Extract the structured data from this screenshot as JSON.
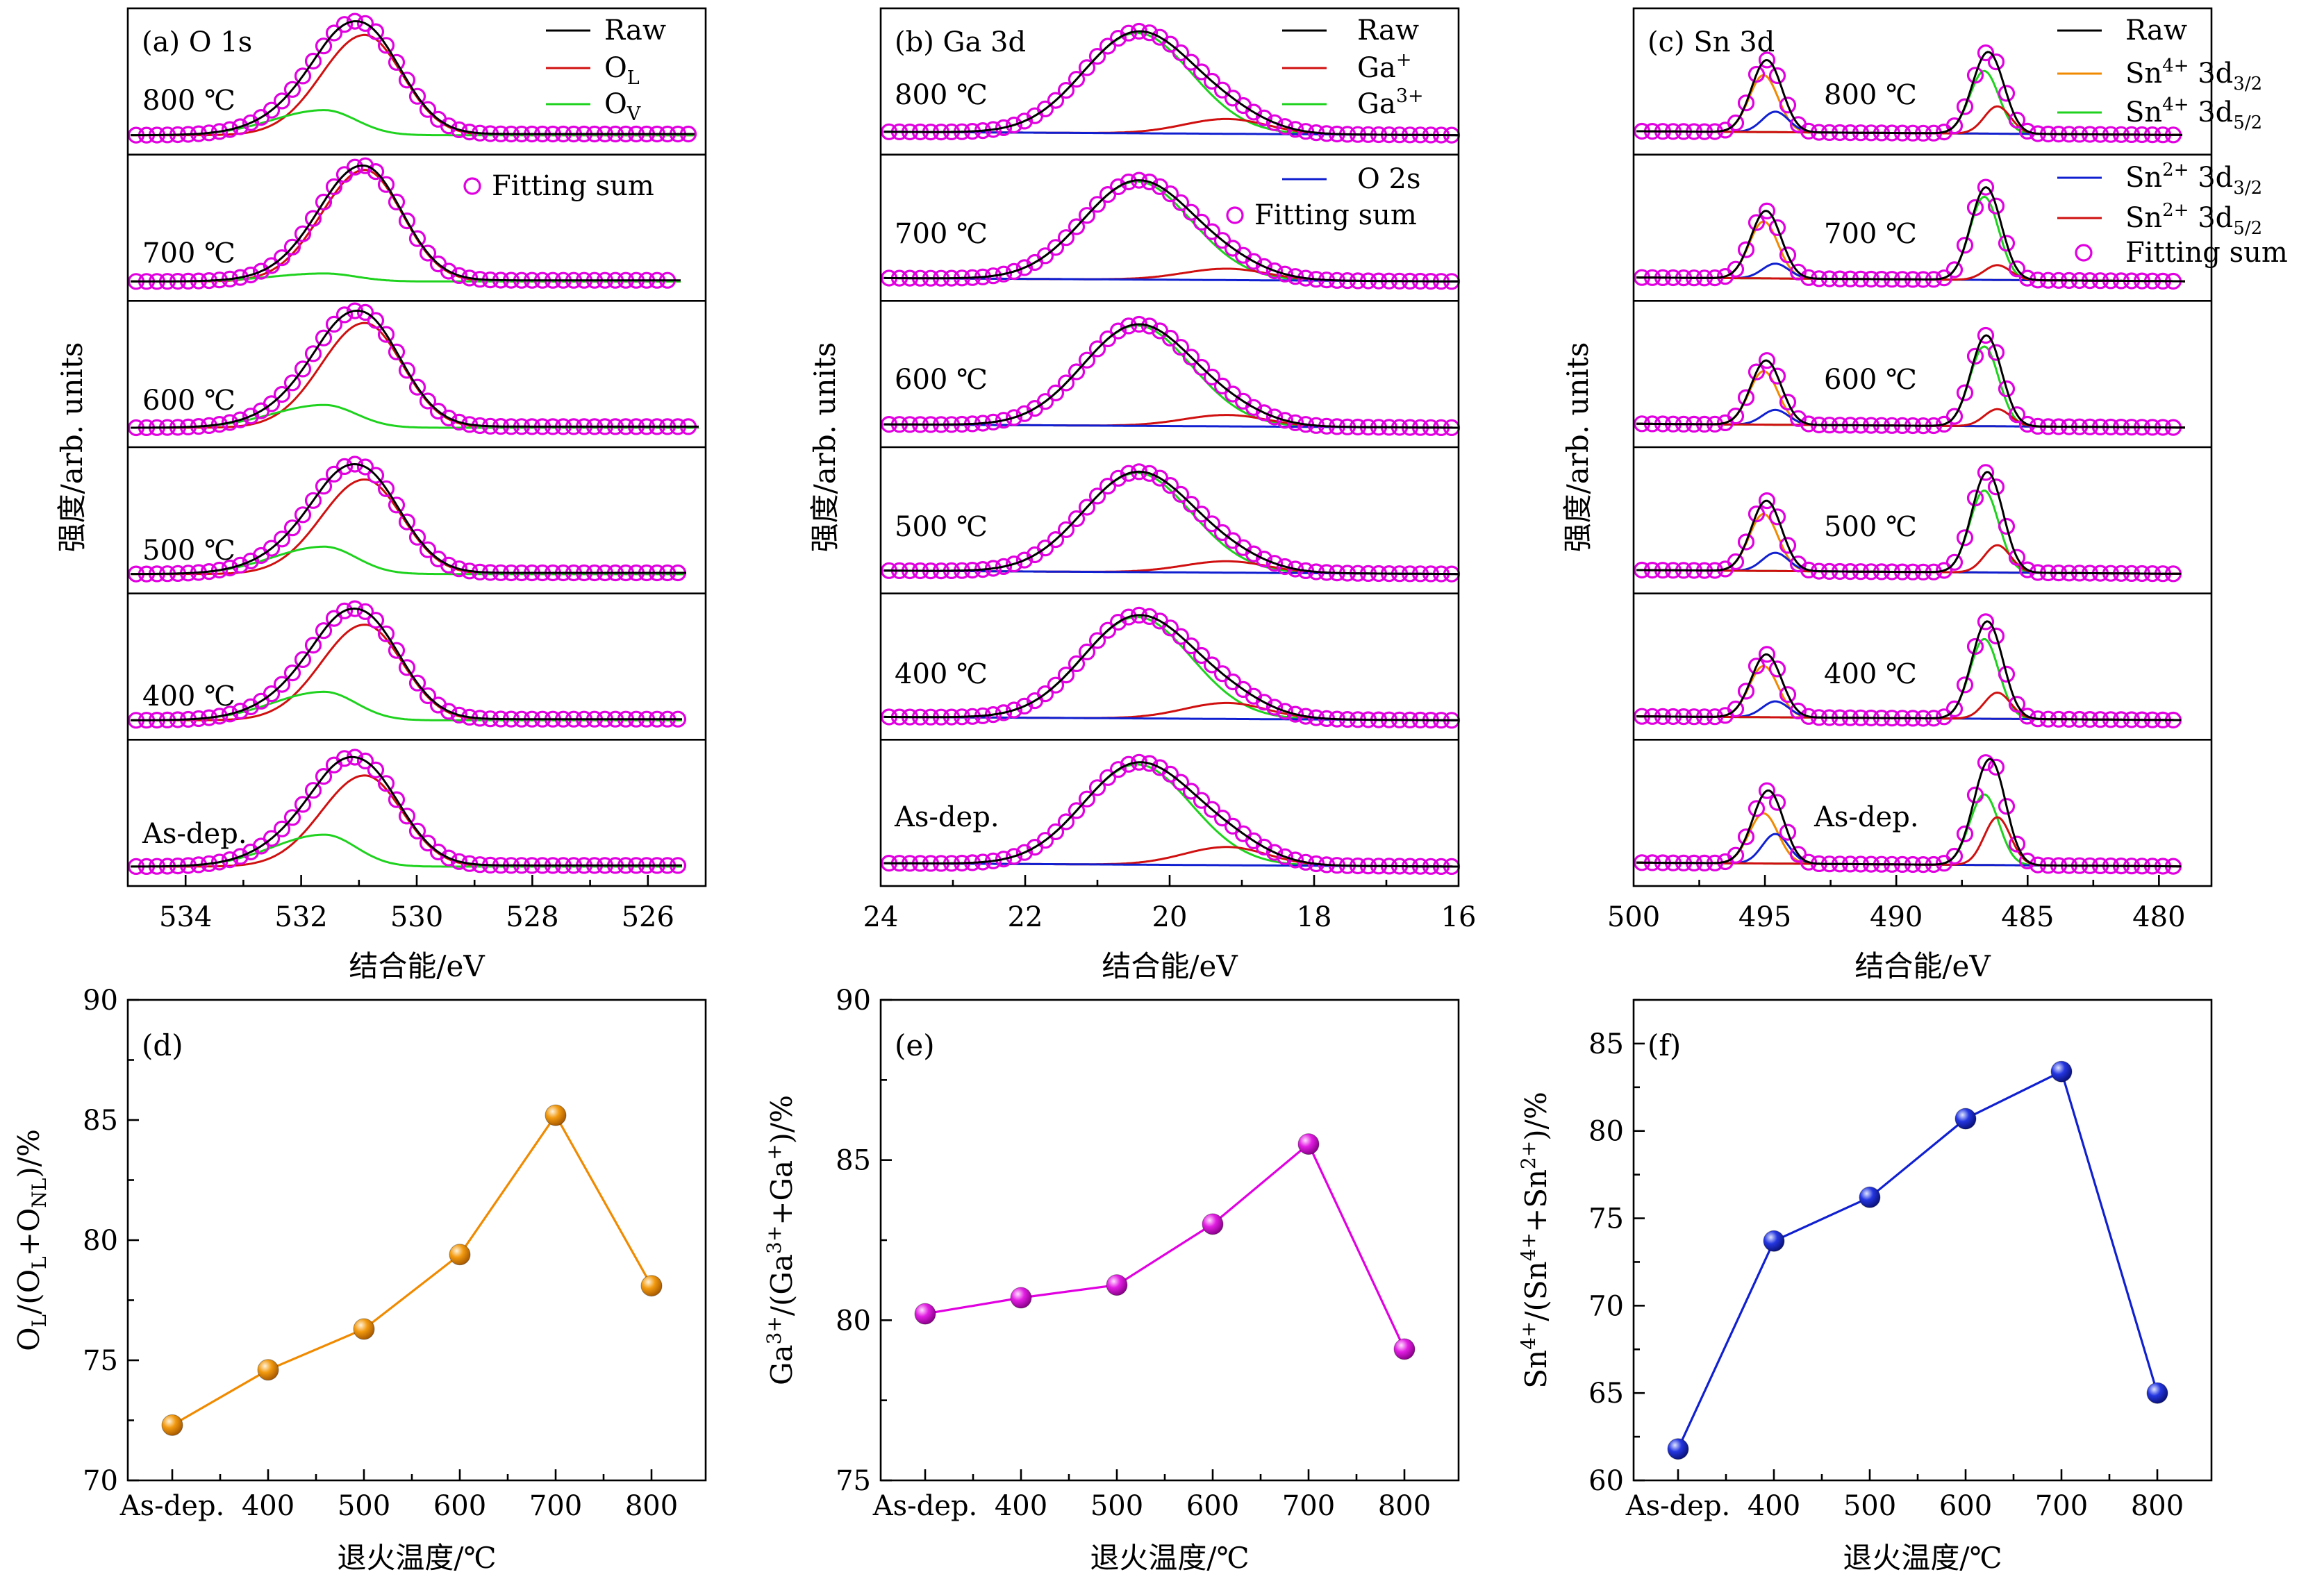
{
  "figure": {
    "spectra_ylabel": "强度/arb. units",
    "spectra_xlabel": "结合能/eV",
    "ratio_xlabel": "退火温度/℃"
  },
  "colors": {
    "raw": "#000000",
    "fit": "#e000e0",
    "green": "#1ed21e",
    "red": "#d01010",
    "blue": "#1020d0",
    "orange": "#f08a00"
  },
  "panels": {
    "a": {
      "label": "(a) O 1s"
    },
    "b": {
      "label": "(b) Ga 3d"
    },
    "c": {
      "label": "(c) Sn 3d"
    },
    "d": {
      "label": "(d)",
      "ylabel_parts": {
        "p1": "O",
        "s1": "L",
        "p2": "/(O",
        "s2": "L",
        "p3": "+O",
        "s3": "NL",
        "p4": ")/%"
      }
    },
    "e": {
      "label": "(e)",
      "ylabel_parts": {
        "p1": "Ga",
        "s1": "3+",
        "p2": "/(Ga",
        "s2": "3+",
        "p3": "+Ga",
        "s3": "+",
        "p4": ")/%"
      }
    },
    "f": {
      "label": "(f)",
      "ylabel_parts": {
        "p1": "Sn",
        "s1": "4+",
        "p2": "/(Sn",
        "s2": "4+",
        "p3": "+Sn",
        "s3": "2+",
        "p4": ")/%"
      }
    }
  },
  "legends": {
    "a": {
      "raw": "Raw",
      "ol": {
        "base": "O",
        "sub": "L"
      },
      "ov": {
        "base": "O",
        "sub": "V"
      },
      "fit": "Fitting sum"
    },
    "b": {
      "raw": "Raw",
      "gap": {
        "base": "Ga",
        "sup": "+"
      },
      "ga3": {
        "base": "Ga",
        "sup": "3+"
      },
      "o2s": "O 2s",
      "fit": "Fitting sum"
    },
    "c": {
      "raw": "Raw",
      "sn4_32": {
        "base": "Sn",
        "sup": "4+",
        "mid": " 3d",
        "sub": "3/2"
      },
      "sn4_52": {
        "base": "Sn",
        "sup": "4+",
        "mid": " 3d",
        "sub": "5/2"
      },
      "sn2_32": {
        "base": "Sn",
        "sup": "2+",
        "mid": " 3d",
        "sub": "3/2"
      },
      "sn2_52": {
        "base": "Sn",
        "sup": "2+",
        "mid": " 3d",
        "sub": "5/2"
      },
      "fit": "Fitting sum"
    }
  },
  "chart_data": [
    {
      "panel": "a",
      "type": "line",
      "title": "(a) O 1s",
      "xlabel": "结合能/eV",
      "ylabel": "强度/arb. units",
      "xlim": [
        535,
        525
      ],
      "x_reversed": true,
      "xticks": [
        "534",
        "532",
        "530",
        "528",
        "526"
      ],
      "stacks_top_to_bottom": [
        "800 ℃",
        "700 ℃",
        "600 ℃",
        "500 ℃",
        "400 ℃",
        "As-dep."
      ],
      "series": [
        {
          "name": "Raw",
          "color": "#000000"
        },
        {
          "name": "O_L",
          "color": "#d01010",
          "center_eV": 530.9
        },
        {
          "name": "O_V",
          "color": "#1ed21e",
          "center_eV": 531.6
        },
        {
          "name": "Fitting sum",
          "color": "#e000e0",
          "marker": "circle"
        }
      ]
    },
    {
      "panel": "b",
      "type": "line",
      "title": "(b) Ga 3d",
      "xlabel": "结合能/eV",
      "ylabel": "强度/arb. units",
      "xlim": [
        24,
        16
      ],
      "x_reversed": true,
      "xticks": [
        "24",
        "22",
        "20",
        "18",
        "16"
      ],
      "stacks_top_to_bottom": [
        "800 ℃",
        "700 ℃",
        "600 ℃",
        "500 ℃",
        "400 ℃",
        "As-dep."
      ],
      "series": [
        {
          "name": "Raw",
          "color": "#000000"
        },
        {
          "name": "Ga+",
          "color": "#d01010",
          "center_eV": 19.2
        },
        {
          "name": "Ga3+",
          "color": "#1ed21e",
          "center_eV": 20.5
        },
        {
          "name": "O 2s",
          "color": "#1020d0"
        },
        {
          "name": "Fitting sum",
          "color": "#e000e0",
          "marker": "circle"
        }
      ]
    },
    {
      "panel": "c",
      "type": "line",
      "title": "(c) Sn 3d",
      "xlabel": "结合能/eV",
      "ylabel": "强度/arb. units",
      "xlim": [
        500,
        478
      ],
      "x_reversed": true,
      "xticks": [
        "500",
        "495",
        "490",
        "485",
        "480"
      ],
      "stacks_top_to_bottom": [
        "800 ℃",
        "700 ℃",
        "600 ℃",
        "500 ℃",
        "400 ℃",
        "As-dep."
      ],
      "series": [
        {
          "name": "Raw",
          "color": "#000000"
        },
        {
          "name": "Sn4+ 3d3/2",
          "color": "#f08a00",
          "center_eV": 495.0
        },
        {
          "name": "Sn4+ 3d5/2",
          "color": "#1ed21e",
          "center_eV": 486.6
        },
        {
          "name": "Sn2+ 3d3/2",
          "color": "#1020d0",
          "center_eV": 494.6
        },
        {
          "name": "Sn2+ 3d5/2",
          "color": "#d01010",
          "center_eV": 486.1
        },
        {
          "name": "Fitting sum",
          "color": "#e000e0",
          "marker": "circle"
        }
      ]
    },
    {
      "panel": "d",
      "type": "line",
      "xlabel": "退火温度/℃",
      "ylabel": "O_L/(O_L+O_NL)/%",
      "categories": [
        "As-dep.",
        "400",
        "500",
        "600",
        "700",
        "800"
      ],
      "values": [
        72.3,
        74.6,
        76.3,
        79.4,
        85.2,
        78.1
      ],
      "ylim": [
        70,
        90
      ],
      "yticks": [
        "70",
        "75",
        "80",
        "85",
        "90"
      ],
      "color": "#f08a00"
    },
    {
      "panel": "e",
      "type": "line",
      "xlabel": "退火温度/℃",
      "ylabel": "Ga3+/(Ga3++Ga+)/%",
      "categories": [
        "As-dep.",
        "400",
        "500",
        "600",
        "700",
        "800"
      ],
      "values": [
        80.2,
        80.7,
        81.1,
        83.0,
        85.5,
        79.1
      ],
      "ylim": [
        75,
        90
      ],
      "yticks": [
        "75",
        "80",
        "85",
        "90"
      ],
      "color": "#e000e0"
    },
    {
      "panel": "f",
      "type": "line",
      "xlabel": "退火温度/℃",
      "ylabel": "Sn4+/(Sn4++Sn2+)/%",
      "categories": [
        "As-dep.",
        "400",
        "500",
        "600",
        "700",
        "800"
      ],
      "values": [
        61.8,
        73.7,
        76.2,
        80.7,
        83.4,
        65.0
      ],
      "ylim": [
        60,
        87.5
      ],
      "yticks": [
        "60",
        "65",
        "70",
        "75",
        "80",
        "85"
      ],
      "color": "#1020d0"
    }
  ]
}
